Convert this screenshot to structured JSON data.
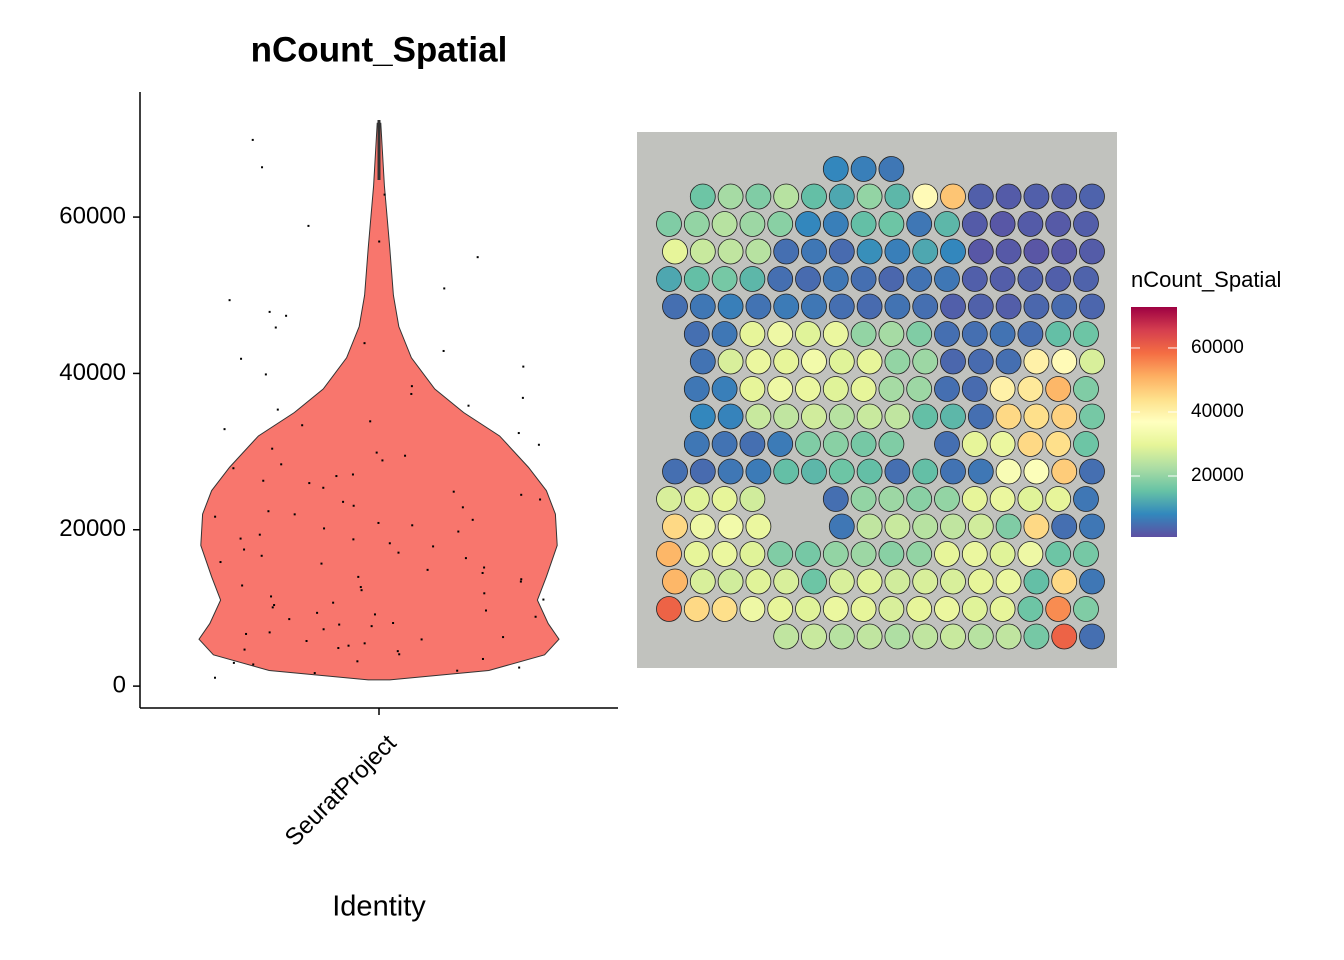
{
  "chart_data": [
    {
      "type": "violin",
      "title": "nCount_Spatial",
      "x_label": "Identity",
      "categories": [
        "SeuratProject"
      ],
      "color": "#f8766d",
      "ylim": [
        -2800,
        76000
      ],
      "yticks": [
        0,
        20000,
        40000,
        60000
      ],
      "density": {
        "y": [
          800,
          2000,
          4000,
          6000,
          8000,
          11000,
          14000,
          18000,
          22000,
          25000,
          28000,
          32000,
          35000,
          38000,
          42000,
          46000,
          50000,
          56000,
          64000,
          72000
        ],
        "width": [
          0.06,
          0.61,
          0.92,
          1,
          0.94,
          0.88,
          0.93,
          0.99,
          0.98,
          0.93,
          0.83,
          0.67,
          0.47,
          0.31,
          0.18,
          0.11,
          0.08,
          0.06,
          0.03,
          0.01
        ]
      },
      "points": [
        1200,
        2500,
        3100,
        4200,
        5000,
        5600,
        6100,
        7000,
        7400,
        8200,
        9000,
        9800,
        10500,
        11200,
        12000,
        12800,
        13500,
        14100,
        15000,
        15800,
        16500,
        17200,
        18000,
        18900,
        19500,
        20300,
        21000,
        21800,
        22500,
        23200,
        24000,
        25000,
        26100,
        27200,
        28500,
        29600,
        31000,
        32500,
        34000,
        36000,
        38500,
        41000,
        44000,
        47500,
        51000,
        55000,
        59000,
        63000,
        66500,
        70000,
        1800,
        2900,
        3600,
        4600,
        5300,
        6400,
        7800,
        8700,
        9500,
        10200,
        11600,
        13000,
        14600,
        16000,
        17600,
        19000,
        20700,
        22100,
        23700,
        25500,
        27000,
        29000,
        30500,
        33000,
        35500,
        37500,
        40000,
        43000,
        46000,
        49500,
        2100,
        3300,
        4800,
        5900,
        6800,
        8000,
        9300,
        10800,
        12400,
        13800,
        15300,
        16800,
        18400,
        19900,
        21400,
        23000,
        24600,
        26400,
        28000,
        30000,
        33500,
        37000,
        42000,
        48000,
        57000
      ]
    },
    {
      "type": "spatial",
      "legend_title": "nCount_Spatial",
      "colorlim": [
        940,
        72800
      ],
      "colorbar_ticks": [
        20000,
        40000,
        60000
      ],
      "colors": [
        "#5e4fa2",
        "#3288bd",
        "#66c2a5",
        "#abdda4",
        "#e6f598",
        "#ffffbf",
        "#fee08b",
        "#fdae61",
        "#f46d43",
        "#d53e4f",
        "#9e0142"
      ],
      "values": [
        [
          null,
          null,
          null,
          null,
          null,
          null,
          8000,
          7000,
          6000,
          null,
          null,
          null,
          null,
          null,
          null,
          null
        ],
        [
          null,
          16000,
          22000,
          18000,
          24000,
          15000,
          12000,
          20000,
          14000,
          38000,
          48000,
          3000,
          2500,
          3000,
          2800,
          3500
        ],
        [
          18000,
          20000,
          24000,
          21000,
          19000,
          8000,
          7000,
          15000,
          16000,
          6000,
          14000,
          2500,
          2000,
          2500,
          2300,
          2800
        ],
        [
          30000,
          26000,
          25000,
          24000,
          5000,
          6000,
          4500,
          9000,
          7000,
          12000,
          8000,
          2000,
          2200,
          1800,
          2100,
          2600
        ],
        [
          12000,
          15000,
          17000,
          14000,
          5000,
          4500,
          6000,
          5000,
          4000,
          5500,
          6000,
          3000,
          2800,
          3200,
          3000,
          3400
        ],
        [
          5000,
          6000,
          7000,
          5500,
          6500,
          6000,
          5000,
          4500,
          5500,
          5000,
          3000,
          3200,
          2800,
          4000,
          4500,
          3800
        ],
        [
          null,
          5000,
          6000,
          30000,
          32000,
          29000,
          31000,
          20000,
          22000,
          18000,
          5000,
          5000,
          5500,
          4800,
          15000,
          16000
        ],
        [
          null,
          5500,
          28000,
          31000,
          30000,
          33000,
          29000,
          30000,
          20000,
          21000,
          4000,
          4500,
          5000,
          40000,
          38000,
          28000
        ],
        [
          null,
          6000,
          7000,
          30000,
          32000,
          31000,
          29000,
          30000,
          22000,
          21000,
          5000,
          4500,
          40000,
          42000,
          50000,
          18000
        ],
        [
          null,
          8000,
          7500,
          26000,
          25000,
          27000,
          24000,
          26000,
          25000,
          15000,
          14000,
          5000,
          45000,
          44000,
          46000,
          17000
        ],
        [
          null,
          6000,
          5500,
          5000,
          6500,
          18000,
          19000,
          17000,
          18000,
          null,
          5000,
          30000,
          31000,
          45000,
          44000,
          16000
        ],
        [
          5000,
          4500,
          6000,
          6500,
          15000,
          14000,
          16000,
          15000,
          5000,
          15000,
          5500,
          6000,
          35000,
          36000,
          47000,
          5000
        ],
        [
          28000,
          29000,
          30000,
          27000,
          null,
          null,
          5000,
          20000,
          21000,
          19000,
          20000,
          30000,
          31000,
          29000,
          30000,
          6000
        ],
        [
          45000,
          32000,
          33000,
          31000,
          null,
          null,
          6000,
          25000,
          26000,
          24000,
          25000,
          27000,
          18000,
          45000,
          5000,
          6000
        ],
        [
          50000,
          30000,
          31000,
          29000,
          18000,
          17000,
          20000,
          21000,
          19000,
          20000,
          30000,
          31000,
          29000,
          32000,
          16000,
          17000
        ],
        [
          50000,
          28000,
          27000,
          29000,
          28000,
          16000,
          28000,
          29000,
          27000,
          28000,
          28000,
          30000,
          31000,
          15000,
          45000,
          6000
        ],
        [
          60000,
          45000,
          44000,
          32000,
          30000,
          29000,
          31000,
          30000,
          28000,
          30000,
          31000,
          29000,
          30000,
          16000,
          55000,
          18000
        ],
        [
          null,
          null,
          null,
          null,
          25000,
          26000,
          24000,
          25000,
          23000,
          25000,
          26000,
          24000,
          25000,
          17000,
          60000,
          5000
        ]
      ]
    }
  ]
}
